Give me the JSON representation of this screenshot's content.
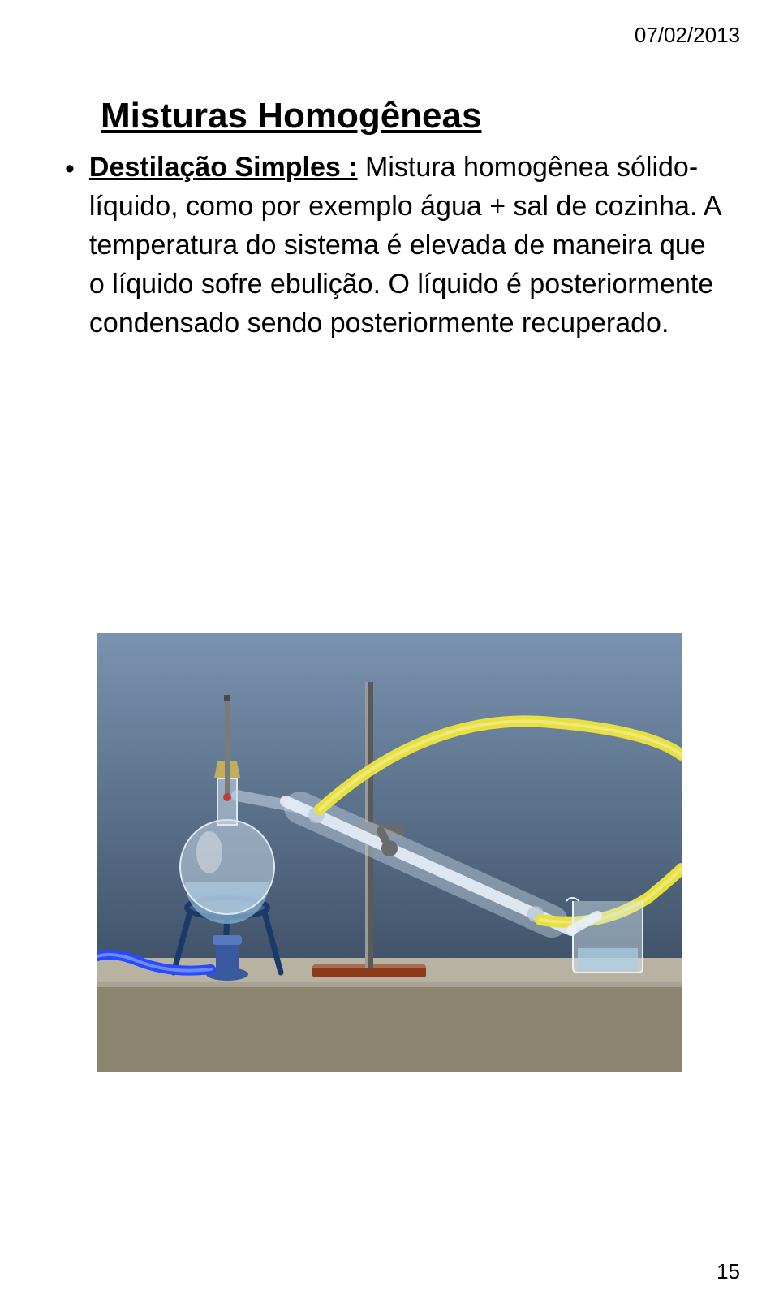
{
  "date": "07/02/2013",
  "title": "Misturas Homogêneas",
  "lead": "Destilação Simples :",
  "body": " Mistura homogênea sólido-líquido, como por exemplo água + sal de cozinha. A temperatura do sistema é elevada de maneira que o líquido sofre ebulição. O líquido é posteriormente condensado sendo posteriormente recuperado.",
  "page_number": "15",
  "figure": {
    "type": "diagram",
    "background_gradient": {
      "top": "#7a93b0",
      "bottom": "#2d3e52"
    },
    "table_color": "#b8b2a0",
    "table_edge_color": "#8c8570",
    "stand_base_color": "#8b3a1a",
    "stand_rod_color": "#5a5a5a",
    "clamp_color": "#6b6b6b",
    "tripod_color": "#1a3a6a",
    "burner_body_color": "#3a5aa0",
    "burner_top_color": "#5a7ac0",
    "flask_glass_color": "#c8d8e8",
    "flask_glass_opacity": 0.55,
    "flask_highlight_color": "#ffffff",
    "stopper_color": "#bfae5a",
    "thermometer_body_color": "#7a7a7a",
    "thermometer_bulb_color": "#c83a3a",
    "condenser_outer_color": "#b8c8d8",
    "condenser_outer_opacity": 0.5,
    "condenser_inner_color": "#e8f0f8",
    "hose_blue": "#2a4aff",
    "hose_yellow": "#e8e040",
    "beaker_color": "#d8e8f0",
    "beaker_opacity": 0.45,
    "liquid_color": "#8ab8d8",
    "rod_highlight": "#9a9a9a"
  }
}
